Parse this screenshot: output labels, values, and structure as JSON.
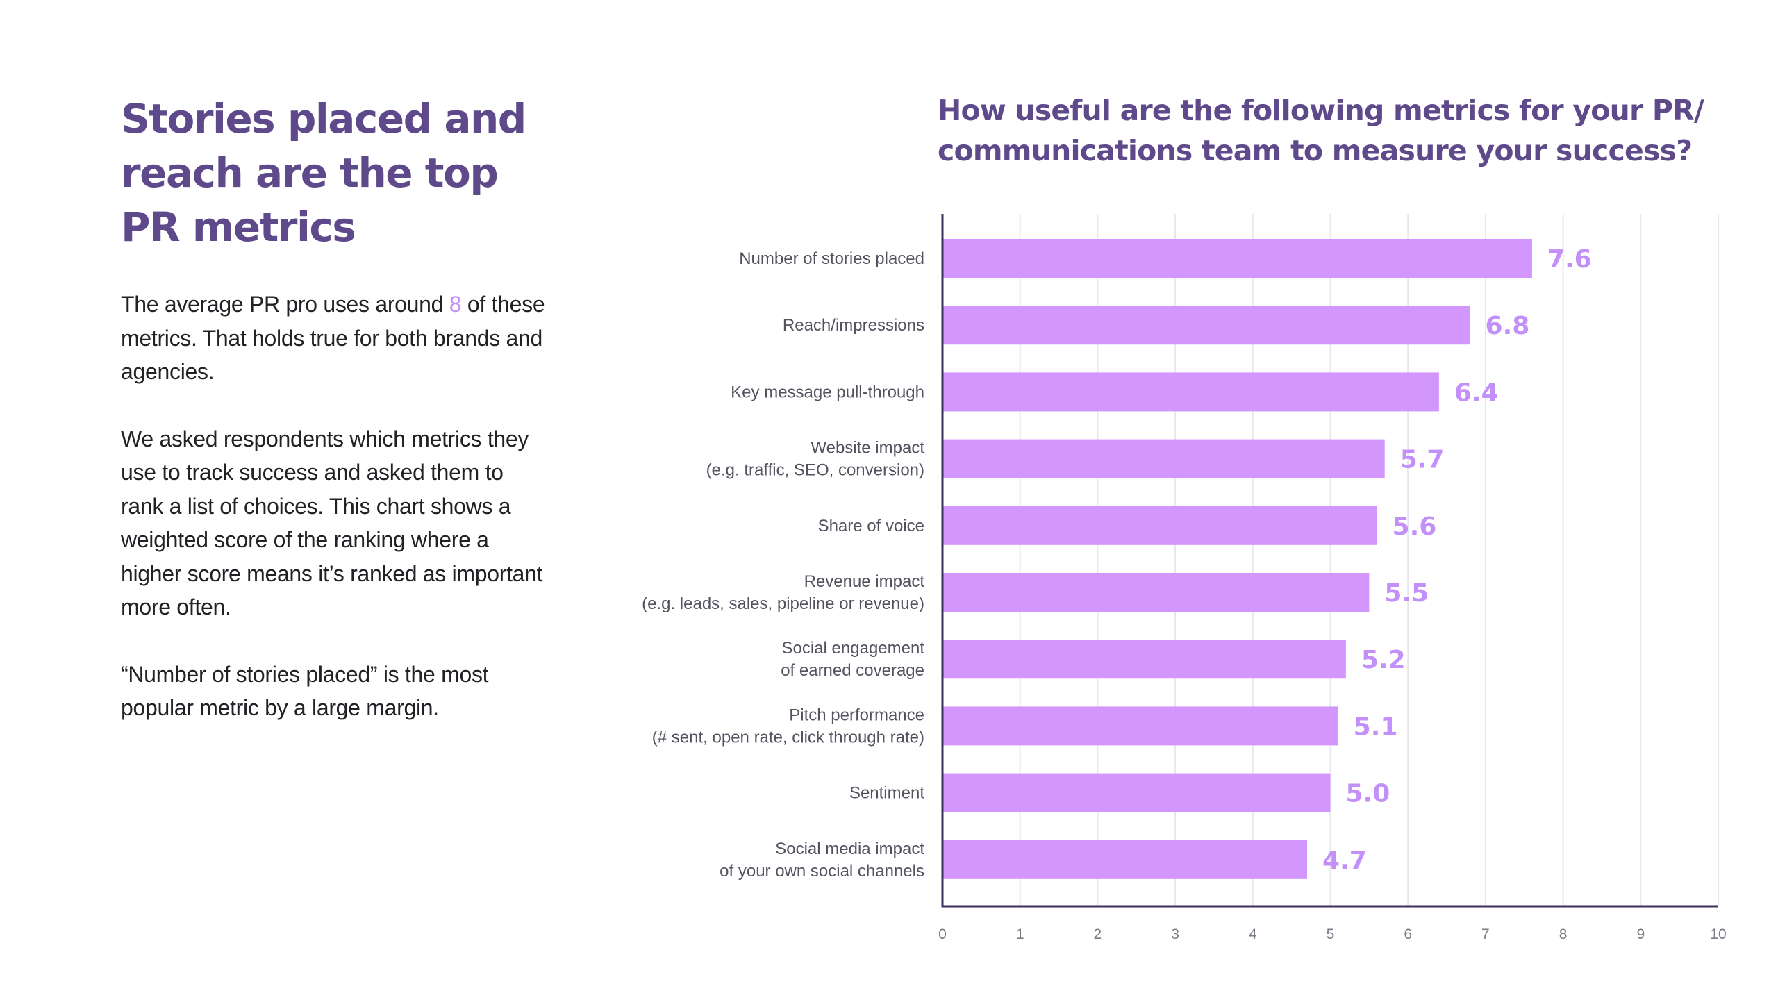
{
  "intro": {
    "headline_lines": [
      "Stories placed and",
      "reach are the top",
      "PR metrics"
    ],
    "p1_before": "The average PR pro uses around",
    "p1_number": "8",
    "p1_after": "of these metrics. That holds true for both brands and agencies.",
    "p2": "We asked respondents which metrics they use to track success and asked them to rank a list of choices. This chart shows a weighted score of the ranking where a higher score means it’s ranked as important more often.",
    "p3": "“Number of stories placed” is the most popular metric by a large margin."
  },
  "chart_data": {
    "type": "bar",
    "orientation": "horizontal",
    "title": "How useful are the following metrics for your PR/ communications team to measure your success?",
    "categories": [
      [
        "Number of stories placed"
      ],
      [
        "Reach/impressions"
      ],
      [
        "Key message pull-through"
      ],
      [
        "Website impact",
        "(e.g. traffic, SEO, conversion)"
      ],
      [
        "Share of voice"
      ],
      [
        "Revenue impact",
        "(e.g. leads, sales, pipeline or revenue)"
      ],
      [
        "Social engagement",
        "of earned coverage"
      ],
      [
        "Pitch performance",
        "(# sent, open rate, click through rate)"
      ],
      [
        "Sentiment"
      ],
      [
        "Social media impact",
        "of your own social channels"
      ]
    ],
    "values": [
      7.6,
      6.8,
      6.4,
      5.7,
      5.6,
      5.5,
      5.2,
      5.1,
      5.0,
      4.7
    ],
    "value_labels": [
      "7.6",
      "6.8",
      "6.4",
      "5.7",
      "5.6",
      "5.5",
      "5.2",
      "5.1",
      "5.0",
      "4.7"
    ],
    "xlim": [
      0,
      10
    ],
    "xticks": [
      0,
      1,
      2,
      3,
      4,
      5,
      6,
      7,
      8,
      9,
      10
    ],
    "grid": true,
    "xlabel": "",
    "ylabel": "",
    "colors": {
      "bar": "#d296fc",
      "value_label": "#c390f9",
      "axis": "#3d2e5c",
      "grid": "#e9e7ee"
    }
  },
  "theme": {
    "title_color": "#5e4a8b",
    "accent": "#c390f9"
  }
}
